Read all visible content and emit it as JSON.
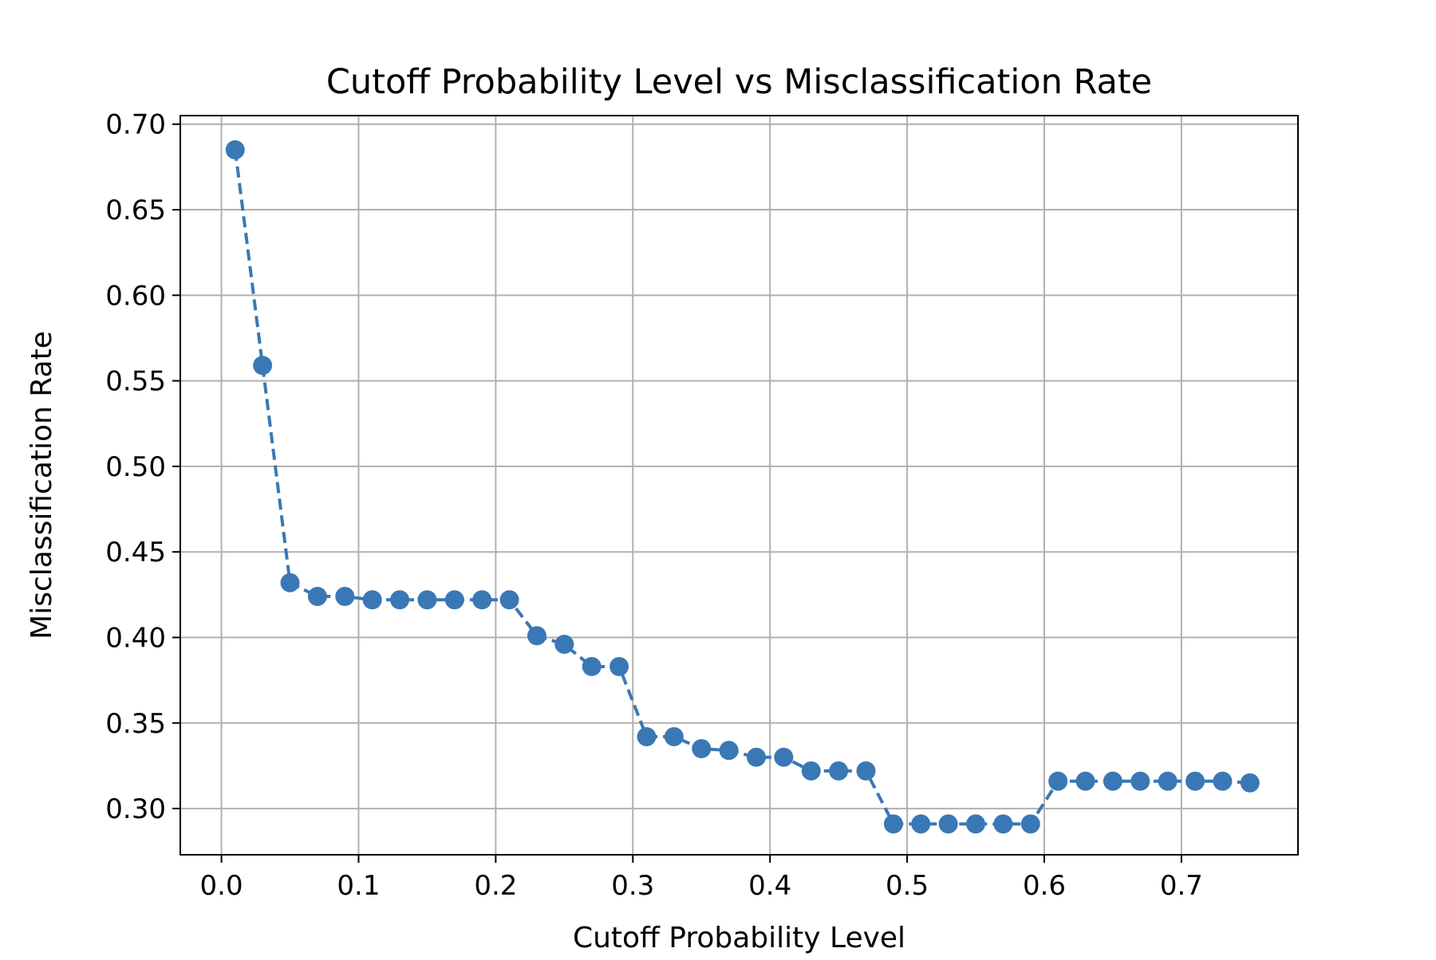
{
  "chart_data": {
    "type": "line",
    "title": "Cutoff Probability Level vs Misclassification Rate",
    "xlabel": "Cutoff Probability Level",
    "ylabel": "Misclassification Rate",
    "xlim": [
      -0.03,
      0.785
    ],
    "ylim": [
      0.273,
      0.705
    ],
    "xticks": [
      0.0,
      0.1,
      0.2,
      0.3,
      0.4,
      0.5,
      0.6,
      0.7
    ],
    "xtick_labels": [
      "0.0",
      "0.1",
      "0.2",
      "0.3",
      "0.4",
      "0.5",
      "0.6",
      "0.7"
    ],
    "yticks": [
      0.3,
      0.35,
      0.4,
      0.45,
      0.5,
      0.55,
      0.6,
      0.65,
      0.7
    ],
    "ytick_labels": [
      "0.30",
      "0.35",
      "0.40",
      "0.45",
      "0.50",
      "0.55",
      "0.60",
      "0.65",
      "0.70"
    ],
    "grid": true,
    "line_style": "dashed",
    "marker": "circle",
    "color": "#3a78b5",
    "series": [
      {
        "x": [
          0.01,
          0.03,
          0.05,
          0.07,
          0.09,
          0.11,
          0.13,
          0.15,
          0.17,
          0.19,
          0.21,
          0.23,
          0.25,
          0.27,
          0.29,
          0.31,
          0.33,
          0.35,
          0.37,
          0.39,
          0.41,
          0.43,
          0.45,
          0.47,
          0.49,
          0.51,
          0.53,
          0.55,
          0.57,
          0.59,
          0.61,
          0.63,
          0.65,
          0.67,
          0.69,
          0.71,
          0.73,
          0.75
        ],
        "values": [
          0.685,
          0.559,
          0.432,
          0.424,
          0.424,
          0.422,
          0.422,
          0.422,
          0.422,
          0.422,
          0.422,
          0.401,
          0.396,
          0.383,
          0.383,
          0.342,
          0.342,
          0.335,
          0.334,
          0.33,
          0.33,
          0.322,
          0.322,
          0.322,
          0.291,
          0.291,
          0.291,
          0.291,
          0.291,
          0.291,
          0.316,
          0.316,
          0.316,
          0.316,
          0.316,
          0.316,
          0.316,
          0.315
        ]
      }
    ]
  }
}
